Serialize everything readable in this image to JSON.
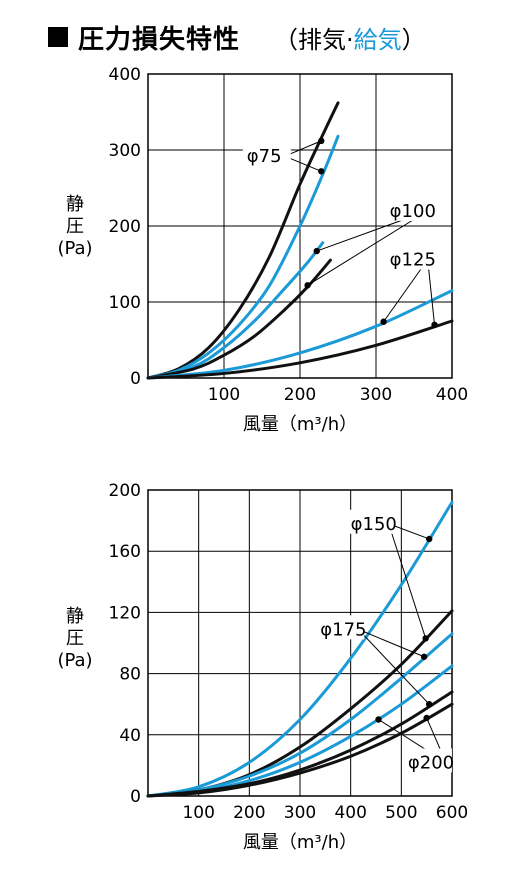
{
  "title": {
    "main": "圧力損失特性",
    "paren_open": "（",
    "exhaust": "排気",
    "separator": "·",
    "supply": "給気",
    "paren_close": "）"
  },
  "colors": {
    "exhaust": "#111111",
    "supply": "#1a9ad6",
    "grid": "#000000"
  },
  "chart_data": [
    {
      "type": "line",
      "ylabel_lines": [
        "静",
        "圧",
        "(Pa)"
      ],
      "xlabel": "風量（m³/h）",
      "xlim": [
        0,
        400
      ],
      "ylim": [
        0,
        400
      ],
      "x_ticks": [
        "100",
        "200",
        "300",
        "400"
      ],
      "y_ticks": [
        "0",
        "100",
        "200",
        "300",
        "400"
      ],
      "grid": true,
      "series": [
        {
          "name": "φ75",
          "kind": "exhaust",
          "x": [
            0,
            40,
            80,
            120,
            160,
            200,
            230,
            250
          ],
          "y": [
            0,
            12,
            40,
            90,
            160,
            255,
            320,
            362
          ]
        },
        {
          "name": "φ75",
          "kind": "supply",
          "x": [
            0,
            40,
            80,
            120,
            160,
            200,
            230,
            250
          ],
          "y": [
            0,
            10,
            33,
            70,
            122,
            200,
            268,
            318
          ]
        },
        {
          "name": "φ100",
          "kind": "supply",
          "x": [
            0,
            60,
            100,
            140,
            180,
            210,
            230
          ],
          "y": [
            0,
            15,
            40,
            75,
            118,
            152,
            178
          ]
        },
        {
          "name": "φ100",
          "kind": "exhaust",
          "x": [
            0,
            60,
            100,
            140,
            180,
            210,
            240
          ],
          "y": [
            0,
            12,
            30,
            55,
            90,
            120,
            155
          ]
        },
        {
          "name": "φ125",
          "kind": "supply",
          "x": [
            0,
            100,
            200,
            300,
            400
          ],
          "y": [
            0,
            10,
            33,
            68,
            115
          ]
        },
        {
          "name": "φ125",
          "kind": "exhaust",
          "x": [
            0,
            100,
            200,
            300,
            400
          ],
          "y": [
            0,
            6,
            20,
            43,
            75
          ]
        }
      ],
      "points": [
        {
          "label": "φ75",
          "x": 228,
          "y": 312
        },
        {
          "label": "φ75",
          "x": 228,
          "y": 272
        },
        {
          "label": "φ100",
          "x": 222,
          "y": 167
        },
        {
          "label": "φ100",
          "x": 210,
          "y": 122
        },
        {
          "label": "φ125",
          "x": 310,
          "y": 74
        },
        {
          "label": "φ125",
          "x": 377,
          "y": 70
        }
      ],
      "annotations": [
        {
          "text": "φ75",
          "at": [
            130,
            284
          ],
          "points": [
            0,
            1
          ]
        },
        {
          "text": "φ100",
          "at": [
            318,
            212
          ],
          "points": [
            2,
            3
          ]
        },
        {
          "text": "φ125",
          "at": [
            318,
            148
          ],
          "points": [
            4,
            5
          ]
        }
      ]
    },
    {
      "type": "line",
      "ylabel_lines": [
        "静",
        "圧",
        "(Pa)"
      ],
      "xlabel": "風量（m³/h）",
      "xlim": [
        0,
        600
      ],
      "ylim": [
        0,
        200
      ],
      "x_ticks": [
        "100",
        "200",
        "300",
        "400",
        "500",
        "600"
      ],
      "y_ticks": [
        "0",
        "40",
        "80",
        "120",
        "160",
        "200"
      ],
      "grid": true,
      "series": [
        {
          "name": "φ150",
          "kind": "supply",
          "x": [
            0,
            100,
            200,
            300,
            400,
            500,
            600
          ],
          "y": [
            0,
            6,
            22,
            50,
            90,
            138,
            192
          ]
        },
        {
          "name": "φ150",
          "kind": "exhaust",
          "x": [
            0,
            100,
            200,
            300,
            400,
            500,
            600
          ],
          "y": [
            0,
            4,
            14,
            32,
            57,
            86,
            121
          ]
        },
        {
          "name": "φ175",
          "kind": "supply",
          "x": [
            0,
            100,
            200,
            300,
            400,
            500,
            600
          ],
          "y": [
            0,
            4,
            13,
            28,
            50,
            77,
            106
          ]
        },
        {
          "name": "φ175",
          "kind": "supply",
          "x": [
            0,
            100,
            200,
            300,
            400,
            500,
            600
          ],
          "y": [
            0,
            3,
            10,
            22,
            39,
            60,
            85
          ]
        },
        {
          "name": "φ200",
          "kind": "exhaust",
          "x": [
            0,
            100,
            200,
            300,
            400,
            500,
            600
          ],
          "y": [
            0,
            3,
            8,
            17,
            30,
            47,
            68
          ]
        },
        {
          "name": "φ200",
          "kind": "exhaust",
          "x": [
            0,
            100,
            200,
            300,
            400,
            500,
            600
          ],
          "y": [
            0,
            2,
            7,
            15,
            26,
            41,
            60
          ]
        }
      ],
      "points": [
        {
          "label": "φ150",
          "x": 555,
          "y": 168
        },
        {
          "label": "φ150",
          "x": 548,
          "y": 103
        },
        {
          "label": "φ175",
          "x": 545,
          "y": 91
        },
        {
          "label": "φ175",
          "x": 555,
          "y": 60
        },
        {
          "label": "φ200",
          "x": 455,
          "y": 50
        },
        {
          "label": "φ200",
          "x": 550,
          "y": 51
        }
      ],
      "annotations": [
        {
          "text": "φ150",
          "at": [
            400,
            174
          ],
          "points": [
            0,
            1
          ]
        },
        {
          "text": "φ175",
          "at": [
            340,
            105
          ],
          "points": [
            2,
            3
          ]
        },
        {
          "text": "φ200",
          "at": [
            513,
            18
          ],
          "points": [
            4,
            5
          ]
        }
      ]
    }
  ]
}
